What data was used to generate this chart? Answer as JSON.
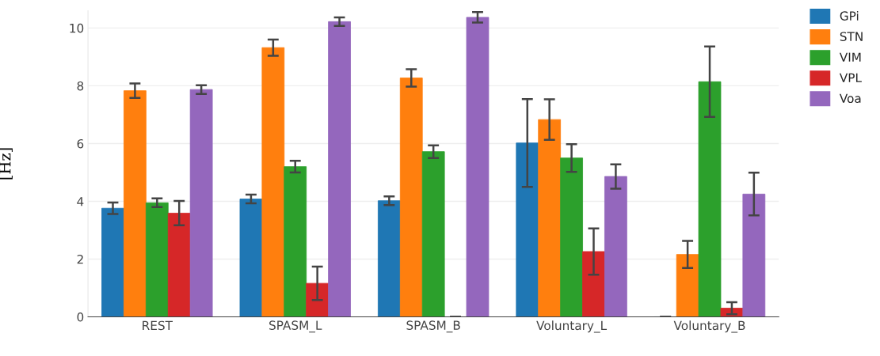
{
  "chart_data": {
    "type": "bar",
    "ylabel": "[Hz]",
    "categories": [
      "REST",
      "SPASM_L",
      "SPASM_B",
      "Voluntary_L",
      "Voluntary_B"
    ],
    "series": [
      {
        "name": "GPi",
        "color": "#1f77b4",
        "values": [
          3.76,
          4.08,
          4.02,
          6.02,
          0
        ],
        "errors": [
          0.2,
          0.15,
          0.15,
          1.52,
          0
        ]
      },
      {
        "name": "STN",
        "color": "#ff7f0e",
        "values": [
          7.83,
          9.32,
          8.27,
          6.83,
          2.16
        ],
        "errors": [
          0.25,
          0.28,
          0.3,
          0.7,
          0.47
        ]
      },
      {
        "name": "VIM",
        "color": "#2ca02c",
        "values": [
          3.95,
          5.2,
          5.72,
          5.5,
          8.14
        ],
        "errors": [
          0.15,
          0.2,
          0.22,
          0.48,
          1.22
        ]
      },
      {
        "name": "VPL",
        "color": "#d62728",
        "values": [
          3.59,
          1.16,
          0,
          2.26,
          0.3
        ],
        "errors": [
          0.42,
          0.58,
          0,
          0.8,
          0.21
        ]
      },
      {
        "name": "Voa",
        "color": "#9467bd",
        "values": [
          7.87,
          10.22,
          10.37,
          4.86,
          4.25
        ],
        "errors": [
          0.15,
          0.15,
          0.18,
          0.42,
          0.74
        ]
      }
    ],
    "ylim": [
      0,
      10.6
    ],
    "yticks": [
      0,
      2,
      4,
      6,
      8,
      10
    ],
    "grid": "y",
    "legend": "top right"
  }
}
